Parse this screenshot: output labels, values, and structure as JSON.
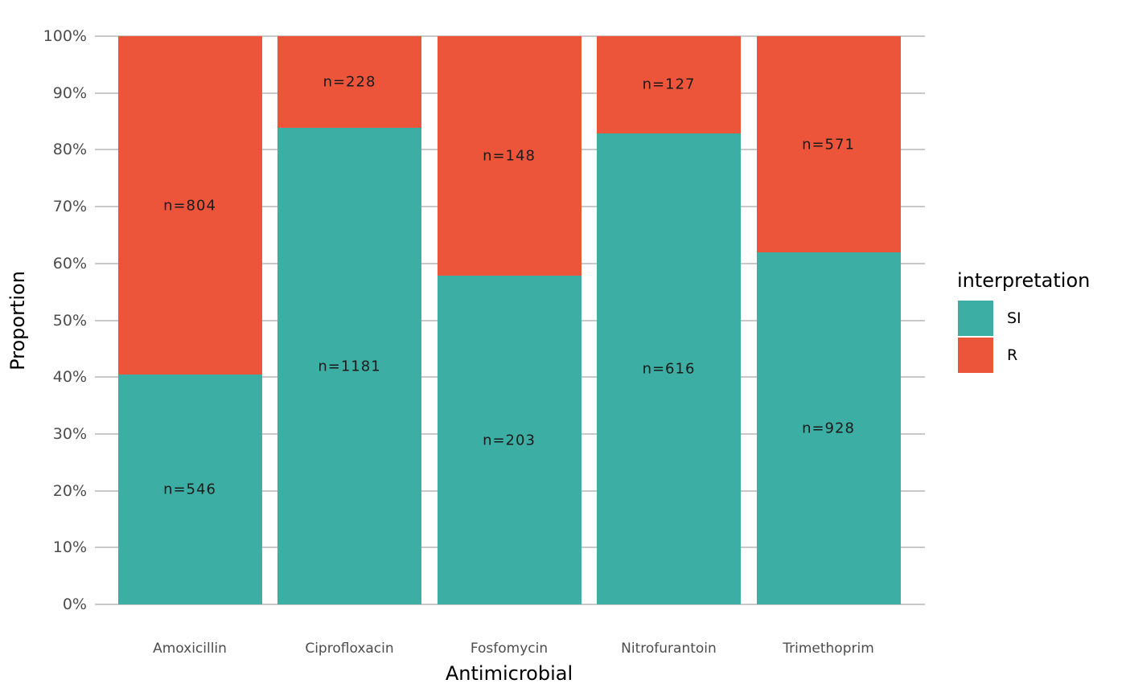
{
  "axes": {
    "y_title": "Proportion",
    "x_title": "Antimicrobial",
    "y_tick_labels": [
      "0%",
      "10%",
      "20%",
      "30%",
      "40%",
      "50%",
      "60%",
      "70%",
      "80%",
      "90%",
      "100%"
    ]
  },
  "legend": {
    "title": "interpretation",
    "items": [
      {
        "label": "SI",
        "color": "#3CAEA3"
      },
      {
        "label": "R",
        "color": "#ED553B"
      }
    ]
  },
  "colors": {
    "si": "#3CAEA3",
    "r": "#ED553B",
    "gridline": "#C9C9C9",
    "tick_text": "#4D4D4D",
    "label_text": "#1A1A1A"
  },
  "chart_data": {
    "type": "bar",
    "subtype": "stacked-percent",
    "title": "",
    "xlabel": "Antimicrobial",
    "ylabel": "Proportion",
    "ylim": [
      0,
      1
    ],
    "grid": "horizontal",
    "legend_position": "right",
    "categories": [
      "Amoxicillin",
      "Ciprofloxacin",
      "Fosfomycin",
      "Nitrofurantoin",
      "Trimethoprim"
    ],
    "series": [
      {
        "name": "SI",
        "color": "#3CAEA3",
        "counts": [
          546,
          1181,
          203,
          616,
          928
        ],
        "labels": [
          "n=546",
          "n=1181",
          "n=203",
          "n=616",
          "n=928"
        ],
        "proportions": [
          0.404,
          0.838,
          0.578,
          0.829,
          0.619
        ]
      },
      {
        "name": "R",
        "color": "#ED553B",
        "counts": [
          804,
          228,
          148,
          127,
          571
        ],
        "labels": [
          "n=804",
          "n=228",
          "n=148",
          "n=127",
          "n=571"
        ],
        "proportions": [
          0.596,
          0.162,
          0.422,
          0.171,
          0.381
        ]
      }
    ]
  }
}
